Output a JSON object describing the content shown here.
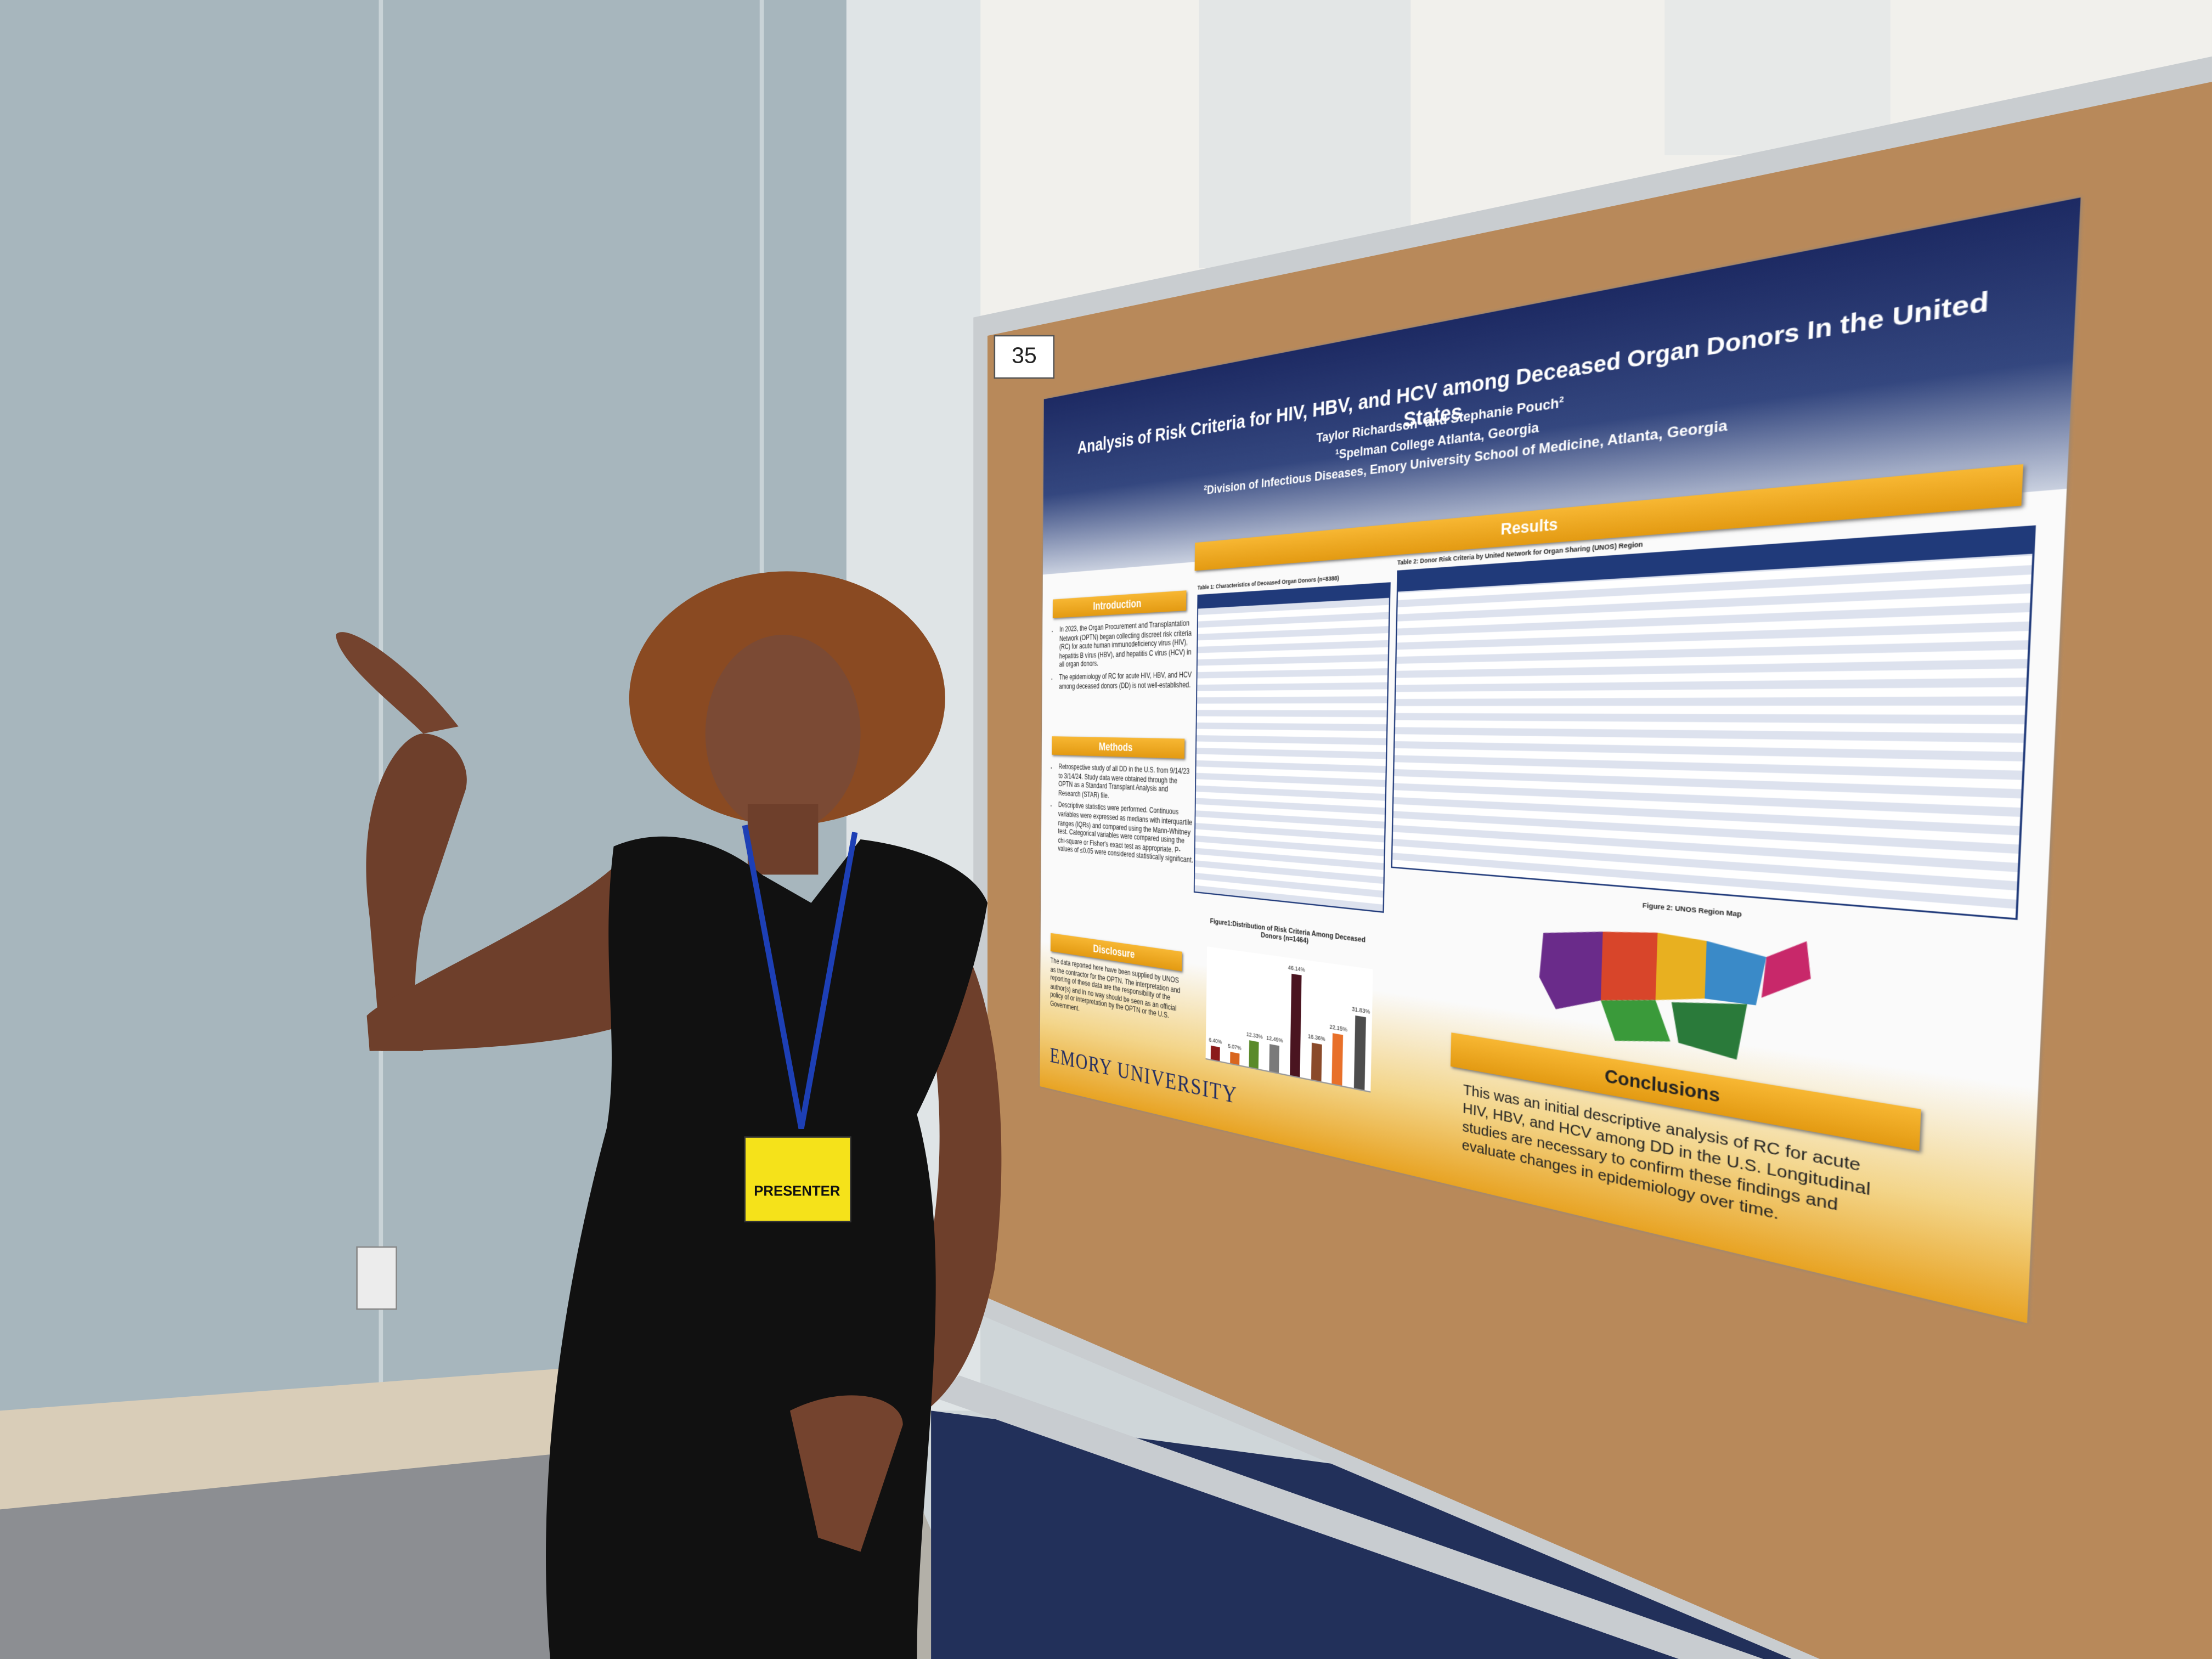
{
  "board_number": "35",
  "badge": "PRESENTER",
  "poster": {
    "title": "Analysis of Risk Criteria for HIV, HBV, and HCV among Deceased Organ Donors In the United States",
    "authors": "Taylor Richardson¹ and Stephanie Pouch²",
    "affiliations": [
      "¹Spelman College Atlanta, Georgia",
      "²Division of Infectious Diseases, Emory University School of Medicine, Atlanta, Georgia"
    ],
    "introduction": {
      "heading": "Introduction",
      "bullets": [
        "In 2023, the Organ Procurement and Transplantation Network (OPTN) began collecting discreet risk criteria (RC) for acute human immunodeficiency virus (HIV), hepatitis B virus (HBV), and hepatitis C virus (HCV) in all organ donors.",
        "The epidemiology of RC for acute HIV, HBV, and HCV among deceased donors (DD) is not well-established."
      ]
    },
    "methods": {
      "heading": "Methods",
      "bullets": [
        "Retrospective study of all DD in the U.S. from 9/14/23 to 3/14/24. Study data were obtained through the OPTN as a Standard Transplant Analysis and Research (STAR) file.",
        "Descriptive statistics were performed. Continuous variables were expressed as medians with interquartile ranges (IQRs) and compared using the Mann-Whitney test. Categorical variables were compared using the chi-square or Fisher's exact test as appropriate. P-values of ≤0.05 were considered statistically significant."
      ]
    },
    "disclosure": {
      "heading": "Disclosure",
      "text": "The data reported here have been supplied by UNOS as the contractor for the OPTN. The interpretation and reporting of these data are the responsibility of the author(s) and in no way should be seen as an official policy of or interpretation by the OPTN or the U.S. Government."
    },
    "results_heading": "Results",
    "table1_title": "Table 1: Characteristics of Deceased Organ Donors (n=8388)",
    "table2_title": "Table 2: Donor Risk Criteria by United Network for Organ Sharing (UNOS) Region",
    "figure1": {
      "title": "Figure1:Distribution of Risk Criteria Among Deceased Donors (n=1464)",
      "values": [
        6.4,
        5.07,
        12.33,
        12.49,
        46.14,
        16.36,
        22.15,
        31.83
      ],
      "value_labels": [
        "6.40%",
        "5.07%",
        "12.33%",
        "12.49%",
        "46.14%",
        "16.36%",
        "22.15%",
        "31.83%"
      ],
      "colors": [
        "#8b1a1a",
        "#d9661f",
        "#5a8a2a",
        "#7a7a7a",
        "#4a1420",
        "#8a4a2a",
        "#e8702a",
        "#4d4d4d"
      ]
    },
    "figure2_title": "Figure 2: UNOS Region Map",
    "conclusions": {
      "heading": "Conclusions",
      "text": "This was an initial descriptive analysis of RC for acute HIV, HBV, and HCV among DD in the U.S. Longitudinal studies are necessary to confirm these findings and evaluate changes in epidemiology over time."
    },
    "logo": "EMORY UNIVERSITY"
  }
}
